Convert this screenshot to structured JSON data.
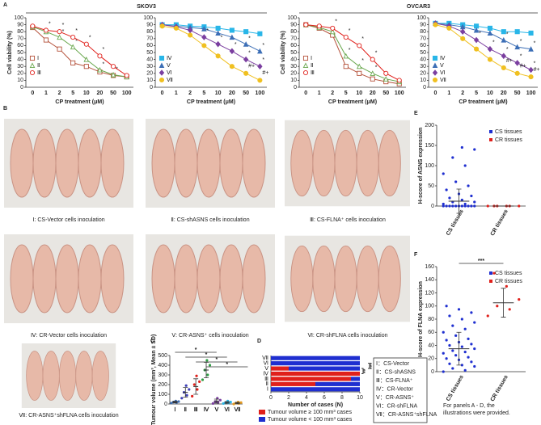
{
  "panel_labels": [
    "A",
    "B",
    "C",
    "D",
    "E",
    "F"
  ],
  "photo_captions": [
    "Ⅰ: CS-Vector cells inoculation",
    "Ⅱ: CS-shASNS cells inoculation",
    "Ⅲ: CS-FLNA⁺ cells inoculation",
    "Ⅳ: CR-Vector cells inoculation",
    "Ⅴ: CR-ASNS⁺ cells inoculation",
    "Ⅵ: CR-shFLNA cells inoculation",
    "Ⅶ: CR-ASNS⁺shFLNA cells inoculation"
  ],
  "group_key": [
    "Ⅰ：CS-Vector",
    "Ⅱ：CS-shASNS",
    "Ⅲ：CS-FLNA⁺",
    "Ⅳ：CR-Vector",
    "Ⅴ：CR-ASNS⁺",
    "Ⅵ：CR-shFLNA",
    "Ⅶ：CR-ASNS⁺shFLNA"
  ],
  "note": [
    "For panels A - D, the",
    "illustrations were provided."
  ],
  "chart_data": [
    {
      "type": "line",
      "title": "SKOV3",
      "y_label": "Cell viability (%)",
      "x_label": "CP treatment (μM)",
      "categories": [
        "0",
        "1",
        "2",
        "5",
        "10",
        "20",
        "50",
        "100"
      ],
      "ylim": [
        0,
        100
      ],
      "yticks": [
        0,
        10,
        20,
        30,
        40,
        50,
        60,
        70,
        80,
        90,
        100
      ],
      "filled": false,
      "series": [
        {
          "name": "Ⅰ",
          "color": "#b5523b",
          "marker": "square",
          "values": [
            86,
            68,
            55,
            35,
            30,
            22,
            17,
            15
          ],
          "point_labels": [
            null,
            null,
            null,
            null,
            null,
            null,
            null,
            null
          ]
        },
        {
          "name": "Ⅱ",
          "color": "#6aa84f",
          "marker": "triangle",
          "values": [
            87,
            80,
            72,
            58,
            40,
            25,
            18,
            15
          ],
          "point_labels": [
            null,
            null,
            "*",
            "*",
            null,
            "*",
            "*",
            null
          ]
        },
        {
          "name": "Ⅲ",
          "color": "#e0201b",
          "marker": "circle",
          "values": [
            88,
            82,
            80,
            72,
            62,
            45,
            30,
            17
          ],
          "point_labels": [
            null,
            "*",
            "*",
            "*",
            "*",
            "*",
            null,
            null
          ]
        }
      ]
    },
    {
      "type": "line",
      "x_label": "CP treatment (μM)",
      "categories": [
        "0",
        "1",
        "2",
        "5",
        "10",
        "20",
        "50",
        "100"
      ],
      "ylim": [
        0,
        100
      ],
      "yticks": [
        0,
        10,
        20,
        30,
        40,
        50,
        60,
        70,
        80,
        90,
        100
      ],
      "filled": true,
      "series": [
        {
          "name": "Ⅳ",
          "color": "#29b6e8",
          "marker": "square",
          "values": [
            90,
            90,
            88,
            87,
            85,
            82,
            80,
            77
          ],
          "point_labels": [
            null,
            null,
            null,
            null,
            null,
            null,
            null,
            null
          ]
        },
        {
          "name": "Ⅴ",
          "color": "#3d6fb6",
          "marker": "triangle",
          "values": [
            90,
            88,
            86,
            84,
            78,
            72,
            62,
            52
          ],
          "point_labels": [
            null,
            null,
            null,
            null,
            null,
            null,
            "*",
            "*"
          ]
        },
        {
          "name": "Ⅵ",
          "color": "#7b3fa0",
          "marker": "diamond",
          "values": [
            90,
            87,
            82,
            72,
            62,
            52,
            40,
            30
          ],
          "point_labels": [
            null,
            null,
            null,
            "*",
            "*",
            "*",
            "*",
            "*"
          ]
        },
        {
          "name": "Ⅶ",
          "color": "#f0c020",
          "marker": "circle",
          "values": [
            88,
            85,
            75,
            60,
            45,
            30,
            20,
            10
          ],
          "point_labels": [
            null,
            null,
            null,
            null,
            null,
            null,
            "#+",
            "#+"
          ]
        }
      ]
    },
    {
      "type": "line",
      "title": "OVCAR3",
      "y_label": "Cell viability (%)",
      "x_label": "CP treatment (μM)",
      "categories": [
        "0",
        "1",
        "2",
        "5",
        "10",
        "20",
        "50",
        "100"
      ],
      "ylim": [
        0,
        100
      ],
      "yticks": [
        0,
        10,
        20,
        30,
        40,
        50,
        60,
        70,
        80,
        90,
        100
      ],
      "filled": false,
      "series": [
        {
          "name": "Ⅰ",
          "color": "#b5523b",
          "marker": "square",
          "values": [
            90,
            85,
            75,
            30,
            20,
            12,
            8,
            5
          ],
          "point_labels": [
            null,
            null,
            null,
            null,
            null,
            null,
            null,
            null
          ]
        },
        {
          "name": "Ⅱ",
          "color": "#6aa84f",
          "marker": "triangle",
          "values": [
            90,
            86,
            80,
            45,
            30,
            20,
            12,
            8
          ],
          "point_labels": [
            null,
            null,
            null,
            "*",
            "*",
            "*",
            null,
            null
          ]
        },
        {
          "name": "Ⅲ",
          "color": "#e0201b",
          "marker": "circle",
          "values": [
            90,
            88,
            85,
            72,
            60,
            40,
            20,
            10
          ],
          "point_labels": [
            null,
            null,
            "*",
            "*",
            "*",
            "*",
            null,
            null
          ]
        }
      ]
    },
    {
      "type": "line",
      "x_label": "CP treatment (μM)",
      "categories": [
        "0",
        "1",
        "2",
        "5",
        "10",
        "20",
        "50",
        "100"
      ],
      "ylim": [
        0,
        100
      ],
      "yticks": [
        0,
        10,
        20,
        30,
        40,
        50,
        60,
        70,
        80,
        90,
        100
      ],
      "filled": true,
      "series": [
        {
          "name": "Ⅳ",
          "color": "#29b6e8",
          "marker": "square",
          "values": [
            92,
            92,
            90,
            88,
            85,
            80,
            80,
            78
          ],
          "point_labels": [
            null,
            null,
            null,
            null,
            null,
            null,
            null,
            null
          ]
        },
        {
          "name": "Ⅴ",
          "color": "#3d6fb6",
          "marker": "triangle",
          "values": [
            92,
            90,
            87,
            82,
            78,
            68,
            58,
            55
          ],
          "point_labels": [
            null,
            null,
            null,
            null,
            null,
            "*",
            "*",
            "*"
          ]
        },
        {
          "name": "Ⅵ",
          "color": "#7b3fa0",
          "marker": "diamond",
          "values": [
            92,
            88,
            80,
            68,
            55,
            45,
            35,
            25
          ],
          "point_labels": [
            null,
            null,
            null,
            "*",
            "*",
            "*",
            "*",
            "*"
          ]
        },
        {
          "name": "Ⅶ",
          "color": "#f0c020",
          "marker": "circle",
          "values": [
            90,
            85,
            70,
            55,
            40,
            28,
            20,
            15
          ],
          "point_labels": [
            null,
            null,
            null,
            null,
            null,
            "#+",
            "#+",
            "#+"
          ]
        }
      ]
    },
    {
      "type": "dot",
      "y_label": "Tumour volume (mm³, Mean ± SD)",
      "categories": [
        "Ⅰ",
        "Ⅱ",
        "Ⅲ",
        "Ⅳ",
        "Ⅴ",
        "Ⅵ",
        "Ⅶ"
      ],
      "ylim": [
        0,
        500
      ],
      "yticks": [
        0,
        100,
        200,
        300,
        400,
        500
      ],
      "significance_marks": [
        "*",
        "*",
        "*",
        "*"
      ],
      "series": [
        {
          "color": "#3d6fb6",
          "points": [
            10,
            15,
            20,
            25,
            30
          ],
          "mean": 20,
          "sd": 8
        },
        {
          "color": "#3d3fb6",
          "points": [
            60,
            90,
            120,
            150,
            190
          ],
          "mean": 120,
          "sd": 50
        },
        {
          "color": "#e0201b",
          "points": [
            80,
            150,
            200,
            230,
            290
          ],
          "mean": 180,
          "sd": 80
        },
        {
          "color": "#2f9e44",
          "points": [
            250,
            300,
            350,
            400,
            450
          ],
          "mean": 350,
          "sd": 80
        },
        {
          "color": "#7b3fa0",
          "points": [
            5,
            15,
            25,
            40,
            60
          ],
          "mean": 30,
          "sd": 20
        },
        {
          "color": "#29b6e8",
          "points": [
            5,
            10,
            15,
            20,
            30
          ],
          "mean": 16,
          "sd": 9
        },
        {
          "color": "#e69b20",
          "points": [
            0,
            5,
            10,
            15,
            20
          ],
          "mean": 10,
          "sd": 8
        }
      ]
    },
    {
      "type": "hbar_stacked",
      "x_label": "Number of cases (N)",
      "categories": [
        "Ⅰ",
        "Ⅱ",
        "Ⅲ",
        "Ⅳ",
        "Ⅴ",
        "Ⅵ",
        "Ⅶ"
      ],
      "xlim": [
        0,
        10
      ],
      "xticks": [
        0,
        2,
        4,
        6,
        8,
        10
      ],
      "significance_marks": [
        "**",
        "***",
        "**",
        "***"
      ],
      "series": [
        {
          "name": "Tumour volume ≥ 100 mm³ cases",
          "color": "#e0201b",
          "values": [
            0,
            5,
            9,
            10,
            2,
            0,
            0
          ]
        },
        {
          "name": "Tumour volume < 100 mm³ cases",
          "color": "#1f2fd0",
          "values": [
            10,
            5,
            1,
            0,
            8,
            10,
            10
          ]
        }
      ]
    },
    {
      "type": "dot",
      "y_label": "H-score of ASNS expression",
      "categories": [
        "CS tissues",
        "CR tissues"
      ],
      "ylim": [
        0,
        200
      ],
      "yticks": [
        0,
        50,
        100,
        150,
        200
      ],
      "series": [
        {
          "name": "CS tissues",
          "color": "#1f2fd0",
          "points": [
            0,
            0,
            0,
            0,
            0,
            0,
            0,
            0,
            0,
            0,
            0,
            5,
            5,
            10,
            10,
            15,
            20,
            25,
            30,
            40,
            50,
            60,
            80,
            100,
            120,
            140,
            145
          ],
          "mean": 12,
          "sd": 30
        },
        {
          "name": "CR tissues",
          "color": "#e0201b",
          "points": [
            0,
            0,
            0,
            0,
            0,
            0
          ],
          "mean": 0,
          "sd": 0
        }
      ]
    },
    {
      "type": "dot",
      "y_label": "H-score of FLNA expression",
      "categories": [
        "CS tissues",
        "CR tissues"
      ],
      "ylim": [
        0,
        160
      ],
      "yticks": [
        0,
        20,
        40,
        60,
        80,
        100,
        120,
        140,
        160
      ],
      "significance_marks": [
        "***"
      ],
      "series": [
        {
          "name": "CS tissues",
          "color": "#1f2fd0",
          "points": [
            0,
            2,
            5,
            8,
            10,
            12,
            15,
            18,
            20,
            22,
            25,
            28,
            30,
            32,
            35,
            38,
            40,
            42,
            45,
            48,
            50,
            55,
            60,
            65,
            70,
            75,
            80,
            85,
            90,
            95,
            100
          ],
          "mean": 35,
          "sd": 25
        },
        {
          "name": "CR tissues",
          "color": "#e0201b",
          "points": [
            85,
            95,
            100,
            110,
            130,
            150
          ],
          "mean": 105,
          "sd": 22
        }
      ]
    }
  ]
}
